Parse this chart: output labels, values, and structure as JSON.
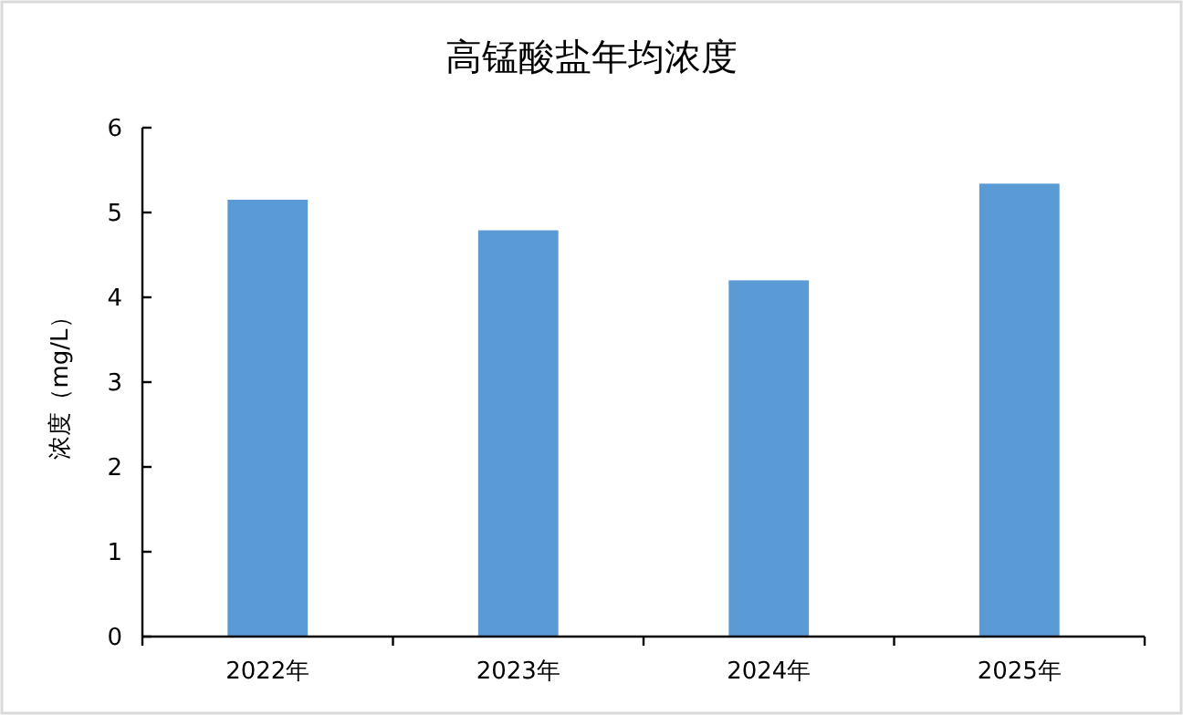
{
  "chart_data": {
    "type": "bar",
    "title": "高锰酸盐年均浓度",
    "ylabel": "浓度（mg/L）",
    "categories": [
      "2022年",
      "2023年",
      "2024年",
      "2025年"
    ],
    "values": [
      5.15,
      4.79,
      4.2,
      5.34
    ],
    "color": "#5b9bd5",
    "ylim": [
      0,
      6
    ],
    "yticks": [
      0,
      1,
      2,
      3,
      4,
      5,
      6
    ],
    "grid": false
  }
}
